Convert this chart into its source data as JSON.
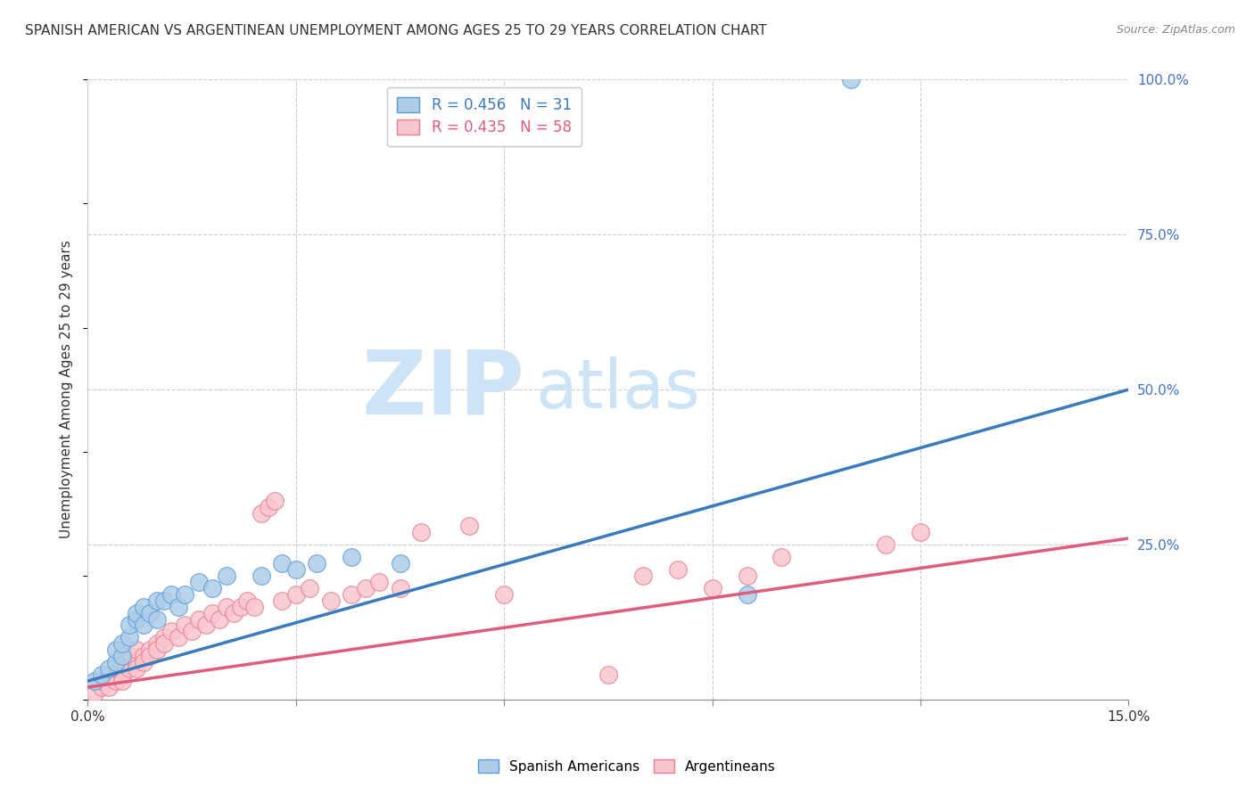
{
  "title": "SPANISH AMERICAN VS ARGENTINEAN UNEMPLOYMENT AMONG AGES 25 TO 29 YEARS CORRELATION CHART",
  "source": "Source: ZipAtlas.com",
  "ylabel": "Unemployment Among Ages 25 to 29 years",
  "xlim": [
    0.0,
    0.15
  ],
  "ylim": [
    0.0,
    1.0
  ],
  "xticks": [
    0.0,
    0.03,
    0.06,
    0.09,
    0.12,
    0.15
  ],
  "xtick_labels_sparse": {
    "0": "0.0%",
    "5": "15.0%"
  },
  "yticks": [
    0.0,
    0.25,
    0.5,
    0.75,
    1.0
  ],
  "ytick_labels": [
    "",
    "25.0%",
    "50.0%",
    "75.0%",
    "100.0%"
  ],
  "blue_R": 0.456,
  "blue_N": 31,
  "pink_R": 0.435,
  "pink_N": 58,
  "blue_fill_color": "#aecde8",
  "pink_fill_color": "#f9c6ce",
  "blue_edge_color": "#5b9bd5",
  "pink_edge_color": "#e87d8f",
  "blue_line_color": "#3a7abf",
  "pink_line_color": "#e05c7a",
  "watermark_zip_color": "#cce4f5",
  "watermark_atlas_color": "#c8dff0",
  "legend_label_blue": "Spanish Americans",
  "legend_label_pink": "Argentineans",
  "title_fontsize": 11,
  "axis_label_fontsize": 11,
  "tick_color": "#4472c4",
  "blue_scatter_x": [
    0.001,
    0.002,
    0.003,
    0.004,
    0.004,
    0.005,
    0.005,
    0.006,
    0.006,
    0.007,
    0.007,
    0.008,
    0.008,
    0.009,
    0.01,
    0.01,
    0.011,
    0.012,
    0.013,
    0.014,
    0.016,
    0.018,
    0.02,
    0.025,
    0.028,
    0.03,
    0.033,
    0.038,
    0.045,
    0.095,
    0.11
  ],
  "blue_scatter_y": [
    0.03,
    0.04,
    0.05,
    0.06,
    0.08,
    0.07,
    0.09,
    0.1,
    0.12,
    0.13,
    0.14,
    0.12,
    0.15,
    0.14,
    0.16,
    0.13,
    0.16,
    0.17,
    0.15,
    0.17,
    0.19,
    0.18,
    0.2,
    0.2,
    0.22,
    0.21,
    0.22,
    0.23,
    0.22,
    0.17,
    1.0
  ],
  "pink_scatter_x": [
    0.001,
    0.002,
    0.002,
    0.003,
    0.003,
    0.004,
    0.004,
    0.005,
    0.005,
    0.005,
    0.006,
    0.006,
    0.007,
    0.007,
    0.007,
    0.008,
    0.008,
    0.009,
    0.009,
    0.01,
    0.01,
    0.011,
    0.011,
    0.012,
    0.013,
    0.014,
    0.015,
    0.016,
    0.017,
    0.018,
    0.019,
    0.02,
    0.021,
    0.022,
    0.023,
    0.024,
    0.025,
    0.026,
    0.027,
    0.028,
    0.03,
    0.032,
    0.035,
    0.038,
    0.04,
    0.042,
    0.045,
    0.048,
    0.055,
    0.06,
    0.075,
    0.08,
    0.085,
    0.09,
    0.095,
    0.1,
    0.115,
    0.12
  ],
  "pink_scatter_y": [
    0.01,
    0.02,
    0.03,
    0.02,
    0.04,
    0.03,
    0.05,
    0.04,
    0.06,
    0.03,
    0.05,
    0.07,
    0.06,
    0.05,
    0.08,
    0.07,
    0.06,
    0.08,
    0.07,
    0.09,
    0.08,
    0.1,
    0.09,
    0.11,
    0.1,
    0.12,
    0.11,
    0.13,
    0.12,
    0.14,
    0.13,
    0.15,
    0.14,
    0.15,
    0.16,
    0.15,
    0.3,
    0.31,
    0.32,
    0.16,
    0.17,
    0.18,
    0.16,
    0.17,
    0.18,
    0.19,
    0.18,
    0.27,
    0.28,
    0.17,
    0.04,
    0.2,
    0.21,
    0.18,
    0.2,
    0.23,
    0.25,
    0.27
  ],
  "blue_trend": [
    0.03,
    0.5
  ],
  "pink_trend": [
    0.02,
    0.26
  ]
}
